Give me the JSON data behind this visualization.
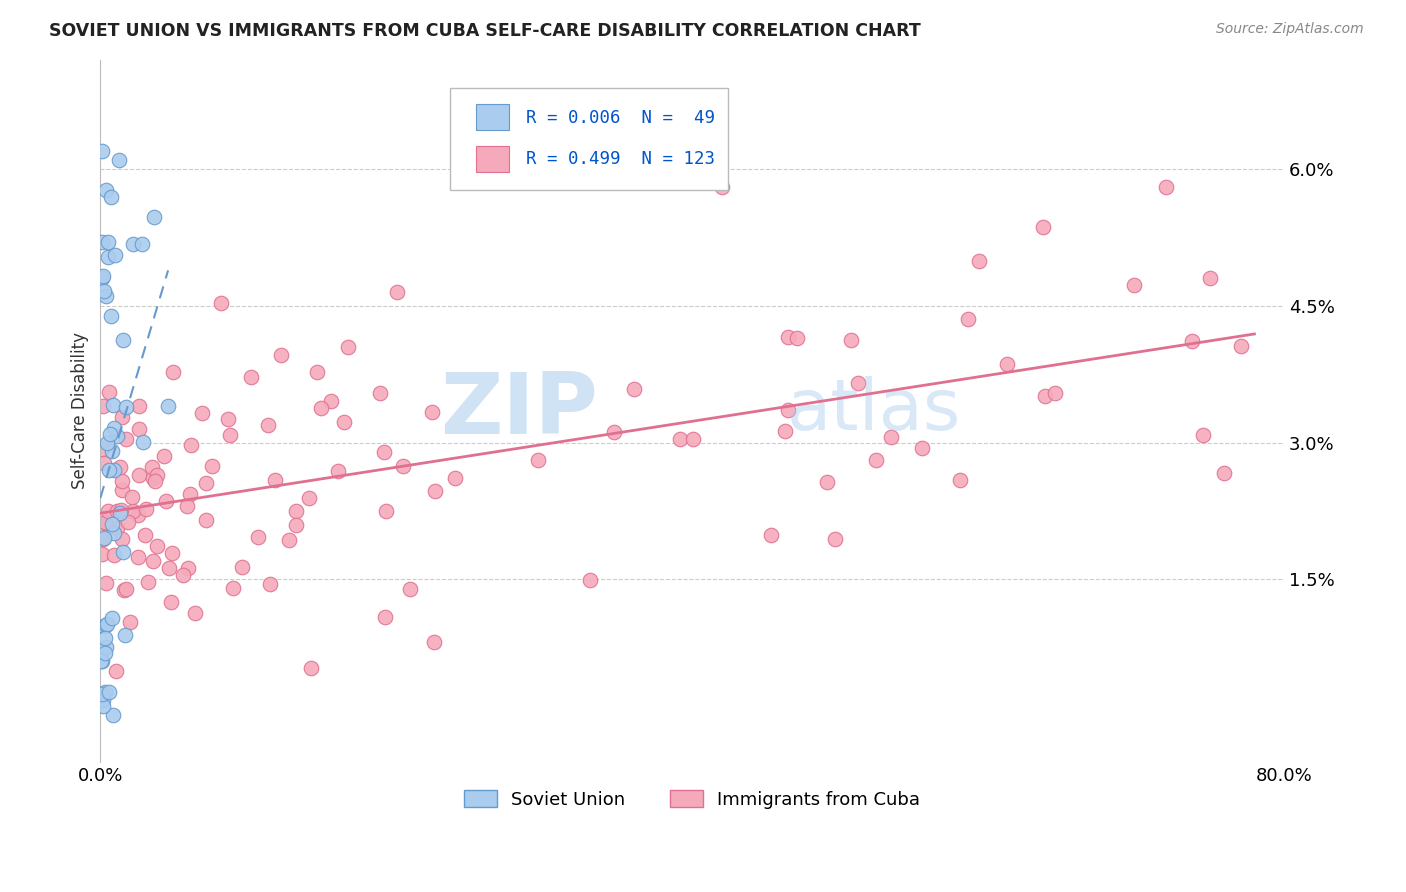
{
  "title": "SOVIET UNION VS IMMIGRANTS FROM CUBA SELF-CARE DISABILITY CORRELATION CHART",
  "source": "Source: ZipAtlas.com",
  "ylabel": "Self-Care Disability",
  "xlim": [
    0.0,
    0.8
  ],
  "ylim": [
    -0.005,
    0.072
  ],
  "series1_label": "Soviet Union",
  "series2_label": "Immigrants from Cuba",
  "series1_color": "#aaccee",
  "series1_edge": "#6699cc",
  "series2_color": "#f5aabb",
  "series2_edge": "#e07090",
  "trendline1_color": "#6699cc",
  "trendline2_color": "#e07090",
  "watermark": "ZIPatlas",
  "background_color": "#ffffff",
  "grid_color": "#cccccc",
  "legend_r1": "R = 0.006",
  "legend_n1": "N =  49",
  "legend_r2": "R = 0.499",
  "legend_n2": "N = 123",
  "legend_color": "#0055cc",
  "legend_label_color": "#333333"
}
